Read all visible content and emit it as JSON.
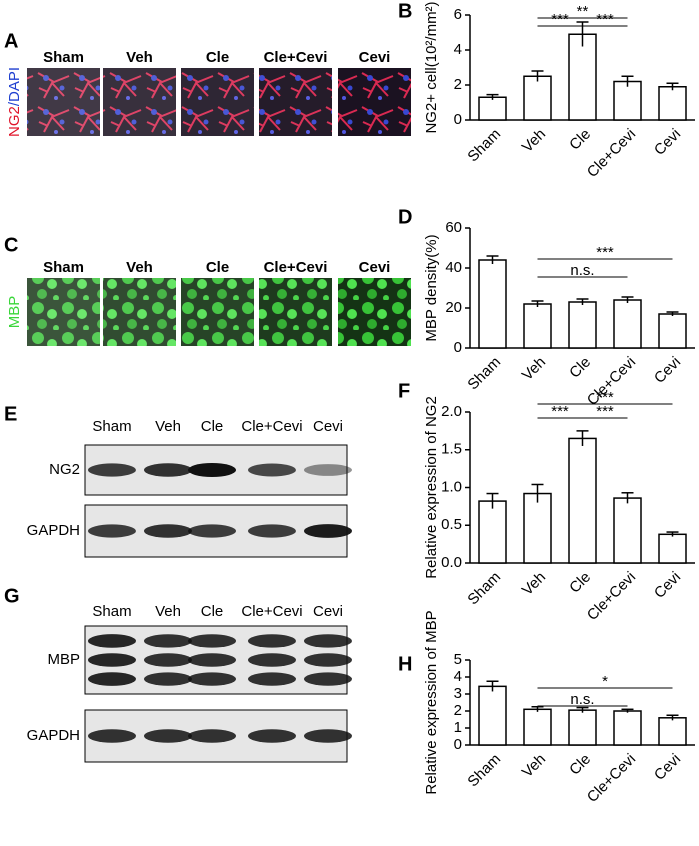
{
  "image_panels": [
    {
      "letter": "A",
      "stain": [
        "NG2",
        "/DAPI"
      ],
      "groups": [
        "Sham",
        "Veh",
        "Cle",
        "Cle+Cevi",
        "Cevi"
      ]
    },
    {
      "letter": "C",
      "stain": [
        "MBP"
      ],
      "groups": [
        "Sham",
        "Veh",
        "Cle",
        "Cle+Cevi",
        "Cevi"
      ]
    }
  ],
  "blots": [
    {
      "letter": "E",
      "lanes": [
        "Sham",
        "Veh",
        "Cle",
        "Cle+Cevi",
        "Cevi"
      ],
      "proteins": [
        "NG2",
        "GAPDH"
      ]
    },
    {
      "letter": "G",
      "lanes": [
        "Sham",
        "Veh",
        "Cle",
        "Cle+Cevi",
        "Cevi"
      ],
      "proteins": [
        "MBP",
        "GAPDH"
      ]
    }
  ],
  "chart_data": [
    {
      "type": "bar",
      "panel": "B",
      "y_label": "NG2+ cell(10²/mm²)",
      "categories": [
        "Sham",
        "Veh",
        "Cle",
        "Cle+Cevi",
        "Cevi"
      ],
      "values": [
        1.3,
        2.5,
        4.9,
        2.2,
        1.9
      ],
      "errors": [
        0.15,
        0.3,
        0.7,
        0.3,
        0.2
      ],
      "color": "#ffffff",
      "ylim": [
        0,
        6
      ],
      "yticks": [
        0,
        2,
        4,
        6
      ],
      "annotations": [
        {
          "text": "**",
          "from": "Veh",
          "to": "Cle+Cevi"
        },
        {
          "text": "***",
          "from": "Veh",
          "to": "Cle"
        },
        {
          "text": "***",
          "from": "Cle",
          "to": "Cle+Cevi"
        }
      ]
    },
    {
      "type": "bar",
      "panel": "D",
      "y_label": "MBP density(%)",
      "categories": [
        "Sham",
        "Veh",
        "Cle",
        "Cle+Cevi",
        "Cevi"
      ],
      "values": [
        44,
        22,
        23,
        24,
        17
      ],
      "errors": [
        2,
        1.5,
        1.5,
        1.5,
        1
      ],
      "color": "#ffffff",
      "ylim": [
        0,
        60
      ],
      "yticks": [
        0,
        20,
        40,
        60
      ],
      "annotations": [
        {
          "text": "***",
          "from": "Veh",
          "to": "Cevi"
        },
        {
          "text": "n.s.",
          "from": "Veh",
          "to": "Cle+Cevi"
        }
      ]
    },
    {
      "type": "bar",
      "panel": "F",
      "y_label": "Relative expression of NG2",
      "categories": [
        "Sham",
        "Veh",
        "Cle",
        "Cle+Cevi",
        "Cevi"
      ],
      "values": [
        0.82,
        0.92,
        1.65,
        0.86,
        0.38
      ],
      "errors": [
        0.1,
        0.12,
        0.1,
        0.07,
        0.03
      ],
      "color": "#ffffff",
      "ylim": [
        0,
        2
      ],
      "yticks": [
        {
          "value": 0,
          "label": "0.0"
        },
        0.5,
        {
          "value": 1,
          "label": "1.0"
        },
        1.5,
        {
          "value": 2,
          "label": "2.0"
        }
      ],
      "annotations": [
        {
          "text": "***",
          "from": "Veh",
          "to": "Cevi"
        },
        {
          "text": "***",
          "from": "Veh",
          "to": "Cle"
        },
        {
          "text": "***",
          "from": "Cle",
          "to": "Cle+Cevi"
        }
      ]
    },
    {
      "type": "bar",
      "panel": "H",
      "y_label": "Relative expression of MBP",
      "categories": [
        "Sham",
        "Veh",
        "Cle",
        "Cle+Cevi",
        "Cevi"
      ],
      "values": [
        3.45,
        2.1,
        2.05,
        2.0,
        1.6
      ],
      "errors": [
        0.3,
        0.15,
        0.15,
        0.1,
        0.15
      ],
      "color": "#ffffff",
      "ylim": [
        0,
        5
      ],
      "yticks": [
        0,
        1,
        2,
        3,
        4,
        5
      ],
      "annotations": [
        {
          "text": "*",
          "from": "Veh",
          "to": "Cevi"
        },
        {
          "text": "n.s.",
          "from": "Veh",
          "to": "Cle+Cevi"
        }
      ]
    }
  ]
}
